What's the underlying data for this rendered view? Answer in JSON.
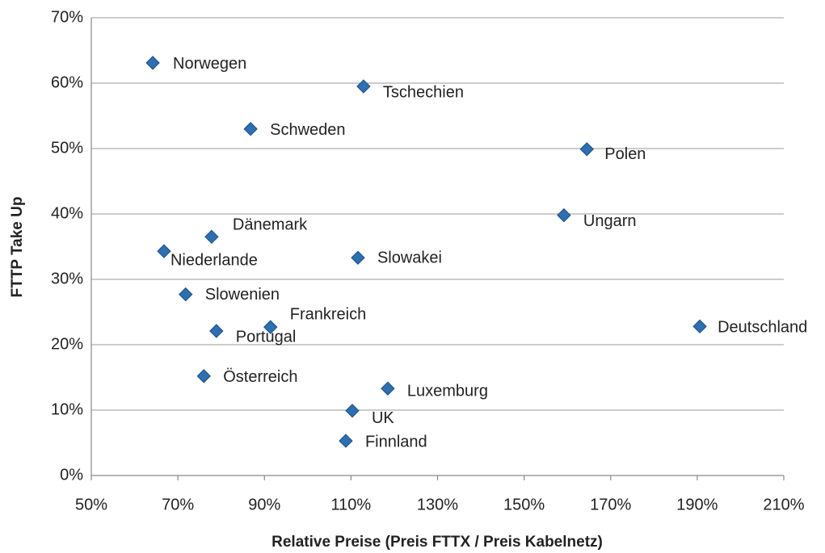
{
  "chart_data": {
    "type": "scatter",
    "xlabel": "Relative Preise (Preis FTTX / Preis Kabelnetz)",
    "ylabel": "FTTP Take Up",
    "labels": [
      "Norwegen",
      "Tschechien",
      "Schweden",
      "Polen",
      "Ungarn",
      "Dänemark",
      "Niederlande",
      "Slowakei",
      "Slowenien",
      "Frankreich",
      "Portugal",
      "Deutschland",
      "Österreich",
      "Luxemburg",
      "UK",
      "Finnland"
    ],
    "x": [
      64.2,
      112.9,
      86.8,
      164.5,
      159.2,
      77.8,
      66.8,
      111.6,
      71.8,
      91.4,
      78.9,
      190.6,
      76.0,
      118.5,
      110.3,
      108.8
    ],
    "values": [
      63.1,
      59.5,
      53.0,
      49.9,
      39.8,
      36.5,
      34.3,
      33.3,
      27.7,
      22.7,
      22.1,
      22.8,
      15.2,
      13.3,
      9.9,
      5.3
    ],
    "color": "#2e6fb0",
    "xlim": [
      50,
      210
    ],
    "xticks": [
      {
        "value": 50,
        "label": "50%"
      },
      {
        "value": 70,
        "label": "70%"
      },
      {
        "value": 90,
        "label": "90%"
      },
      {
        "value": 110,
        "label": "110%"
      },
      {
        "value": 130,
        "label": "130%"
      },
      {
        "value": 150,
        "label": "150%"
      },
      {
        "value": 170,
        "label": "170%"
      },
      {
        "value": 190,
        "label": "190%"
      },
      {
        "value": 210,
        "label": "210%"
      }
    ],
    "ylim": [
      0,
      70
    ],
    "yticks": [
      {
        "value": 0,
        "label": "0%"
      },
      {
        "value": 10,
        "label": "10%"
      },
      {
        "value": 20,
        "label": "20%"
      },
      {
        "value": 30,
        "label": "30%"
      },
      {
        "value": 40,
        "label": "40%"
      },
      {
        "value": 50,
        "label": "50%"
      },
      {
        "value": 60,
        "label": "60%"
      },
      {
        "value": 70,
        "label": "70%"
      }
    ],
    "grid": true
  }
}
